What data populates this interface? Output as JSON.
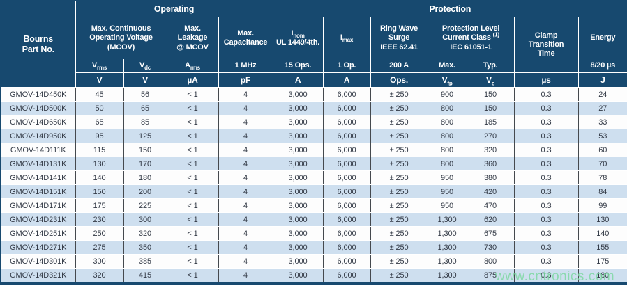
{
  "colors": {
    "header_bg": "#17496F",
    "stripe_blue": "#CEDFEF",
    "watermark_green": "#7FD8A3"
  },
  "groups": {
    "operating": "Operating",
    "protection": "Protection"
  },
  "header": {
    "part": "Bourns\nPart No.",
    "mcov_title": "Max. Continuous\nOperating Voltage\n(MCOV)",
    "vrms": {
      "base": "V",
      "sub": "rms"
    },
    "vdc": {
      "base": "V",
      "sub": "dc"
    },
    "leakage_title": "Max.\nLeakage\n@ MCOV",
    "arms": {
      "base": "A",
      "sub": "rms"
    },
    "capacitance_title": "Max.\nCapacitance",
    "cap_spec": "1 MHz",
    "inom": {
      "base": "I",
      "sub": "nom",
      "line2": "UL 1449/4th."
    },
    "inom_spec": "15 Ops.",
    "imax": {
      "base": "I",
      "sub": "max"
    },
    "imax_spec": "1 Op.",
    "ring_title": "Ring Wave\nSurge\nIEEE 62.41",
    "ring_spec": "200 A",
    "prot_level": {
      "line1": "Protection Level",
      "line2": "Current Class",
      "sup": "(1)",
      "line3": "IEC 61051-1"
    },
    "prot_max": "Max.",
    "prot_typ": "Typ.",
    "clamp_title": "Clamp\nTransition\nTime",
    "energy_title": "Energy",
    "energy_spec": "8/20 µs",
    "units": {
      "vrms": "V",
      "vdc": "V",
      "leak": "µA",
      "cap": "pF",
      "inom": "A",
      "imax": "A",
      "ring": "Ops.",
      "vfp": {
        "base": "V",
        "sub": "fp"
      },
      "vc": {
        "base": "V",
        "sub": "c"
      },
      "clamp": "µs",
      "energy": "J"
    }
  },
  "table": {
    "row_keys": [
      "part",
      "vrms",
      "vdc",
      "leak",
      "cap",
      "inom",
      "imax",
      "ring",
      "vfp",
      "vc",
      "clamp",
      "energy"
    ],
    "rows": [
      {
        "part": "GMOV-14D450K",
        "vrms": "45",
        "vdc": "56",
        "leak": "< 1",
        "cap": "4",
        "inom": "3,000",
        "imax": "6,000",
        "ring": "± 250",
        "vfp": "900",
        "vc": "150",
        "clamp": "0.3",
        "energy": "24"
      },
      {
        "part": "GMOV-14D500K",
        "vrms": "50",
        "vdc": "65",
        "leak": "< 1",
        "cap": "4",
        "inom": "3,000",
        "imax": "6,000",
        "ring": "± 250",
        "vfp": "800",
        "vc": "150",
        "clamp": "0.3",
        "energy": "27"
      },
      {
        "part": "GMOV-14D650K",
        "vrms": "65",
        "vdc": "85",
        "leak": "< 1",
        "cap": "4",
        "inom": "3,000",
        "imax": "6,000",
        "ring": "± 250",
        "vfp": "800",
        "vc": "185",
        "clamp": "0.3",
        "energy": "33"
      },
      {
        "part": "GMOV-14D950K",
        "vrms": "95",
        "vdc": "125",
        "leak": "< 1",
        "cap": "4",
        "inom": "3,000",
        "imax": "6,000",
        "ring": "± 250",
        "vfp": "800",
        "vc": "270",
        "clamp": "0.3",
        "energy": "53"
      },
      {
        "part": "GMOV-14D111K",
        "vrms": "115",
        "vdc": "150",
        "leak": "< 1",
        "cap": "4",
        "inom": "3,000",
        "imax": "6,000",
        "ring": "± 250",
        "vfp": "800",
        "vc": "320",
        "clamp": "0.3",
        "energy": "60"
      },
      {
        "part": "GMOV-14D131K",
        "vrms": "130",
        "vdc": "170",
        "leak": "< 1",
        "cap": "4",
        "inom": "3,000",
        "imax": "6,000",
        "ring": "± 250",
        "vfp": "800",
        "vc": "360",
        "clamp": "0.3",
        "energy": "70"
      },
      {
        "part": "GMOV-14D141K",
        "vrms": "140",
        "vdc": "180",
        "leak": "< 1",
        "cap": "4",
        "inom": "3,000",
        "imax": "6,000",
        "ring": "± 250",
        "vfp": "950",
        "vc": "380",
        "clamp": "0.3",
        "energy": "78"
      },
      {
        "part": "GMOV-14D151K",
        "vrms": "150",
        "vdc": "200",
        "leak": "< 1",
        "cap": "4",
        "inom": "3,000",
        "imax": "6,000",
        "ring": "± 250",
        "vfp": "950",
        "vc": "420",
        "clamp": "0.3",
        "energy": "84"
      },
      {
        "part": "GMOV-14D171K",
        "vrms": "175",
        "vdc": "225",
        "leak": "< 1",
        "cap": "4",
        "inom": "3,000",
        "imax": "6,000",
        "ring": "± 250",
        "vfp": "950",
        "vc": "470",
        "clamp": "0.3",
        "energy": "99"
      },
      {
        "part": "GMOV-14D231K",
        "vrms": "230",
        "vdc": "300",
        "leak": "< 1",
        "cap": "4",
        "inom": "3,000",
        "imax": "6,000",
        "ring": "± 250",
        "vfp": "1,300",
        "vc": "620",
        "clamp": "0.3",
        "energy": "130"
      },
      {
        "part": "GMOV-14D251K",
        "vrms": "250",
        "vdc": "320",
        "leak": "< 1",
        "cap": "4",
        "inom": "3,000",
        "imax": "6,000",
        "ring": "± 250",
        "vfp": "1,300",
        "vc": "675",
        "clamp": "0.3",
        "energy": "140"
      },
      {
        "part": "GMOV-14D271K",
        "vrms": "275",
        "vdc": "350",
        "leak": "< 1",
        "cap": "4",
        "inom": "3,000",
        "imax": "6,000",
        "ring": "± 250",
        "vfp": "1,300",
        "vc": "730",
        "clamp": "0.3",
        "energy": "155"
      },
      {
        "part": "GMOV-14D301K",
        "vrms": "300",
        "vdc": "385",
        "leak": "< 1",
        "cap": "4",
        "inom": "3,000",
        "imax": "6,000",
        "ring": "± 250",
        "vfp": "1,300",
        "vc": "800",
        "clamp": "0.3",
        "energy": "175"
      },
      {
        "part": "GMOV-14D321K",
        "vrms": "320",
        "vdc": "415",
        "leak": "< 1",
        "cap": "4",
        "inom": "3,000",
        "imax": "6,000",
        "ring": "± 250",
        "vfp": "1,300",
        "vc": "875",
        "clamp": "0.3",
        "energy": "180"
      }
    ]
  },
  "watermark": "www.cntronics.com"
}
